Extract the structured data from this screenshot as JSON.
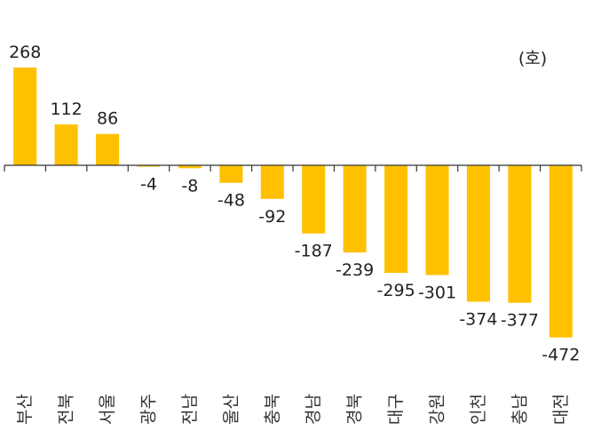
{
  "chart_data": {
    "type": "bar",
    "unit_label": "(호)",
    "categories": [
      "부산",
      "전북",
      "서울",
      "광주",
      "전남",
      "울산",
      "충북",
      "경남",
      "경북",
      "대구",
      "강원",
      "인천",
      "충남",
      "대전"
    ],
    "values": [
      268,
      112,
      86,
      -4,
      -8,
      -48,
      -92,
      -187,
      -239,
      -295,
      -301,
      -374,
      -377,
      -472
    ],
    "value_labels": [
      "268",
      "112",
      "86",
      "-4",
      "-8",
      "-48",
      "-92",
      "-187",
      "-239",
      "-295",
      "-301",
      "-374",
      "-377",
      "-472"
    ],
    "bar_color": "#FFC000",
    "axis_color": "#333333",
    "grid": false,
    "legend": "none"
  }
}
